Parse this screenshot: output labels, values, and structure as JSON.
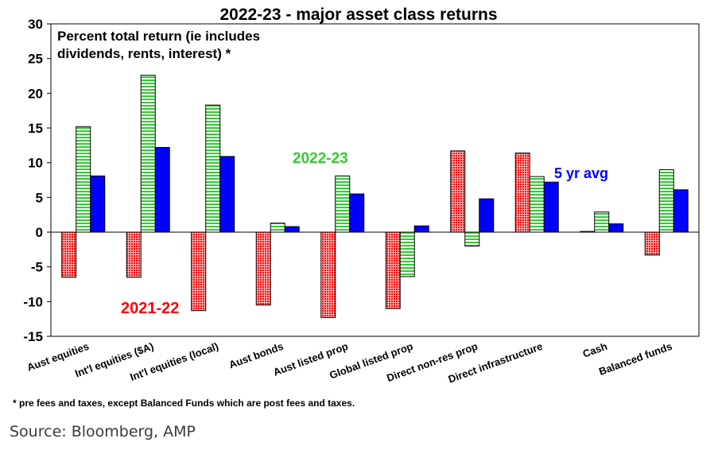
{
  "chart_data": {
    "type": "bar",
    "title": "2022-23 - major asset class returns",
    "subtitle_line1": "Percent total return (ie includes",
    "subtitle_line2": "dividends, rents, interest) *",
    "categories": [
      "Aust equities",
      "Int'l equities ($A)",
      "Int'l equities (local)",
      "Aust bonds",
      "Aust listed prop",
      "Global listed prop",
      "Direct non-res prop",
      "Direct infrastructure",
      "Cash",
      "Balanced funds"
    ],
    "series": [
      {
        "name": "2021-22",
        "color": "#ff0000",
        "pattern": "dots",
        "values": [
          -6.5,
          -6.5,
          -11.3,
          -10.5,
          -12.3,
          -11.0,
          11.7,
          11.4,
          0.1,
          -3.3
        ]
      },
      {
        "name": "2022-23",
        "color": "#33cc33",
        "pattern": "horizontal-stripes",
        "values": [
          15.2,
          22.6,
          18.3,
          1.3,
          8.1,
          -6.4,
          -2.0,
          8.0,
          2.9,
          9.0
        ]
      },
      {
        "name": "5 yr avg",
        "color": "#0000ff",
        "pattern": "solid",
        "values": [
          8.1,
          12.2,
          10.9,
          0.8,
          5.5,
          0.9,
          4.8,
          7.2,
          1.2,
          6.1
        ]
      }
    ],
    "ylim": [
      -15,
      30
    ],
    "yticks": [
      "30",
      "25",
      "20",
      "15",
      "10",
      "5",
      "0",
      "-5",
      "-10",
      "-15"
    ],
    "grid": false,
    "legend": "inline labels"
  },
  "footnote": "* pre fees and taxes, except Balanced Funds which are post fees and taxes.",
  "source": "Source: Bloomberg, AMP"
}
